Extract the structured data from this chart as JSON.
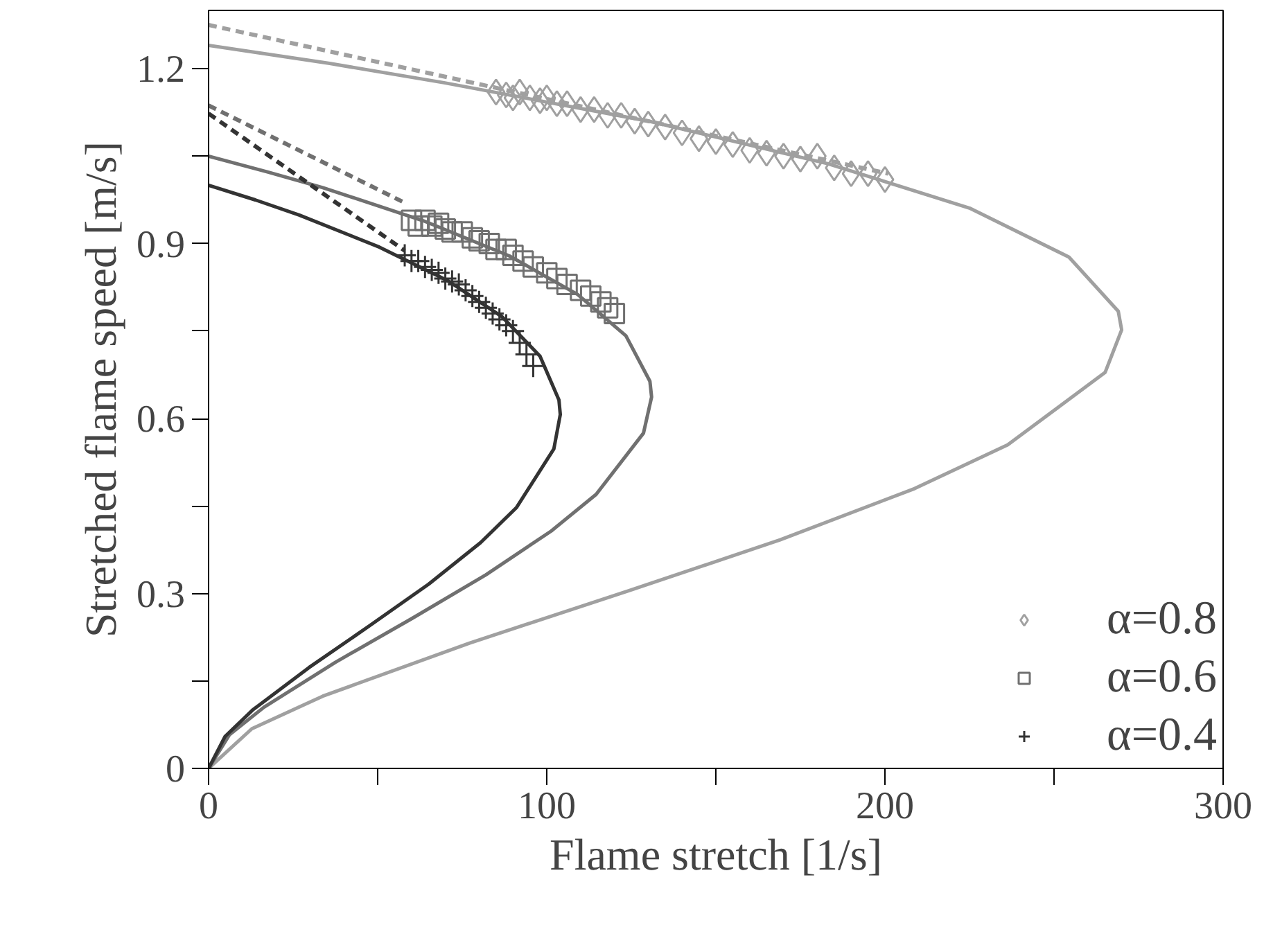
{
  "chart_data": {
    "type": "scatter",
    "xlabel": "Flame stretch [1/s]",
    "ylabel": "Stretched flame speed [m/s]",
    "xlim": [
      0,
      300
    ],
    "ylim": [
      0,
      1.3
    ],
    "xticks": [
      0,
      {
        "value": 50,
        "label": null
      },
      100,
      {
        "value": 150,
        "label": null
      },
      200,
      {
        "value": 250,
        "label": null
      },
      300
    ],
    "yticks": [
      0,
      {
        "value": 0.15,
        "label": null
      },
      0.3,
      {
        "value": 0.45,
        "label": null
      },
      0.6,
      {
        "value": 0.75,
        "label": null
      },
      0.9,
      {
        "value": 1.05,
        "label": null
      },
      1.2
    ],
    "grid": false,
    "legend": "bottom right",
    "series": [
      {
        "type": "line",
        "line_style": "solid",
        "color": "#a0a0a0",
        "x": [
          0,
          35.8,
          69.6,
          131.0,
          183.2,
          225.0,
          254.4,
          269.0,
          270,
          265.1,
          236.3,
          208.8,
          169.0,
          123.9,
          77.2,
          33.8,
          12.8,
          0
        ],
        "values": [
          1.24,
          1.209,
          1.176,
          1.109,
          1.037,
          0.961,
          0.877,
          0.784,
          0.752,
          0.679,
          0.555,
          0.48,
          0.392,
          0.304,
          0.215,
          0.124,
          0.068,
          0
        ]
      },
      {
        "type": "line",
        "line_style": "solid",
        "color": "#707070",
        "x": [
          0,
          17.4,
          33.8,
          63.6,
          88.9,
          109.1,
          123.4,
          130.5,
          131,
          128.6,
          114.6,
          101.3,
          82.0,
          60.1,
          37.5,
          16.4,
          6.2,
          0
        ],
        "values": [
          1.05,
          1.023,
          0.996,
          0.939,
          0.879,
          0.813,
          0.742,
          0.664,
          0.637,
          0.575,
          0.47,
          0.407,
          0.332,
          0.257,
          0.182,
          0.105,
          0.058,
          0
        ]
      },
      {
        "type": "line",
        "line_style": "solid",
        "color": "#333333",
        "x": [
          0,
          13.8,
          26.8,
          50.5,
          70.6,
          86.7,
          98.0,
          103.6,
          104,
          102.1,
          91.0,
          80.4,
          65.1,
          47.7,
          29.7,
          13.0,
          4.9,
          0
        ],
        "values": [
          1.0,
          0.975,
          0.949,
          0.894,
          0.837,
          0.775,
          0.707,
          0.632,
          0.607,
          0.548,
          0.447,
          0.387,
          0.316,
          0.245,
          0.173,
          0.1,
          0.055,
          0
        ]
      },
      {
        "type": "line",
        "line_style": "dashed",
        "color": "#a0a0a0",
        "x": [
          0,
          201
        ],
        "values": [
          1.275,
          1.02
        ]
      },
      {
        "type": "line",
        "line_style": "dashed",
        "color": "#707070",
        "x": [
          0,
          58
        ],
        "values": [
          1.137,
          0.97
        ]
      },
      {
        "type": "line",
        "line_style": "dashed",
        "color": "#333333",
        "x": [
          0,
          58
        ],
        "values": [
          1.123,
          0.888
        ]
      },
      {
        "name": "α=0.8",
        "marker": "diamond",
        "color": "#a0a0a0",
        "x": [
          85,
          88,
          90,
          92,
          95,
          98,
          100,
          103,
          106,
          110,
          114,
          118,
          122,
          126,
          130,
          135,
          140,
          145,
          150,
          155,
          160,
          165,
          170,
          175,
          180,
          185,
          190,
          195,
          200
        ],
        "values": [
          1.16,
          1.155,
          1.15,
          1.16,
          1.15,
          1.145,
          1.15,
          1.14,
          1.14,
          1.13,
          1.13,
          1.12,
          1.12,
          1.11,
          1.105,
          1.1,
          1.09,
          1.08,
          1.075,
          1.07,
          1.06,
          1.055,
          1.05,
          1.045,
          1.05,
          1.03,
          1.02,
          1.02,
          1.01
        ]
      },
      {
        "name": "α=0.6",
        "marker": "square",
        "color": "#707070",
        "x": [
          60,
          62,
          64,
          66,
          68,
          70,
          72,
          75,
          78,
          80,
          83,
          85,
          88,
          90,
          93,
          96,
          100,
          103,
          106,
          110,
          113,
          116,
          118,
          120
        ],
        "values": [
          0.94,
          0.93,
          0.94,
          0.93,
          0.935,
          0.925,
          0.92,
          0.92,
          0.91,
          0.905,
          0.9,
          0.89,
          0.89,
          0.88,
          0.87,
          0.86,
          0.85,
          0.84,
          0.83,
          0.82,
          0.81,
          0.8,
          0.79,
          0.78
        ]
      },
      {
        "name": "α=0.4",
        "marker": "cross",
        "color": "#333333",
        "x": [
          58,
          60,
          62,
          64,
          66,
          68,
          70,
          72,
          74,
          76,
          78,
          80,
          82,
          84,
          86,
          88,
          90,
          92,
          94,
          96
        ],
        "values": [
          0.88,
          0.87,
          0.87,
          0.86,
          0.855,
          0.85,
          0.84,
          0.835,
          0.83,
          0.82,
          0.81,
          0.8,
          0.79,
          0.78,
          0.77,
          0.76,
          0.75,
          0.73,
          0.71,
          0.69
        ]
      }
    ]
  }
}
